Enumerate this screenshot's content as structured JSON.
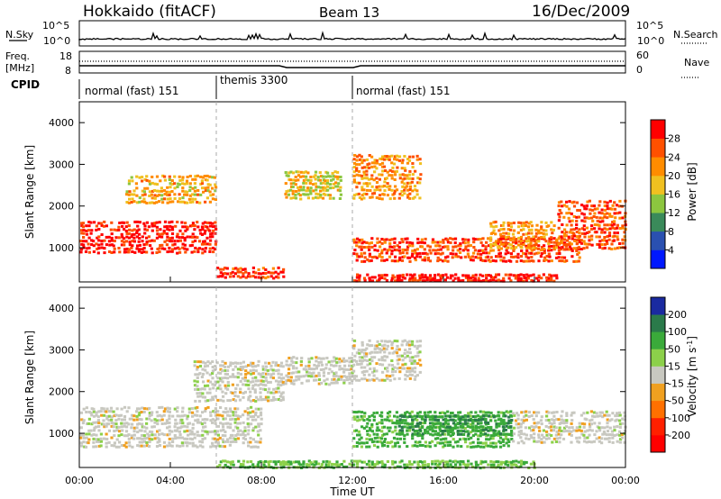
{
  "header": {
    "title": "Hokkaido (fitACF)",
    "beam": "Beam 13",
    "date": "16/Dec/2009"
  },
  "top_panels": {
    "nsky_label": "N.Sky",
    "nsearch_label": "N.Search",
    "nsky_ticks": [
      "10^5",
      "10^0"
    ],
    "nsky_right_ticks": [
      "10^5",
      "10^0"
    ],
    "freq_label_line1": "Freq.",
    "freq_label_line2": "[MHz]",
    "freq_ticks": [
      "18",
      "8"
    ],
    "nave_label": "Nave",
    "nave_ticks": [
      "60",
      "0"
    ],
    "cpid_label": "CPID",
    "cpid_segments": [
      {
        "name": "normal (fast) 151",
        "start_h": 0,
        "end_h": 6
      },
      {
        "name": "themis 3300",
        "start_h": 6,
        "end_h": 12
      },
      {
        "name": "normal (fast) 151",
        "start_h": 12,
        "end_h": 24
      }
    ]
  },
  "axes": {
    "ylabel": "Slant Range [km]",
    "xlabel": "Time UT",
    "y_ticks": [
      "1000",
      "2000",
      "3000",
      "4000"
    ],
    "x_ticks": [
      "00:00",
      "04:00",
      "08:00",
      "12:00",
      "16:00",
      "20:00",
      "00:00"
    ]
  },
  "colorbars": {
    "power": {
      "label": "Power [dB]",
      "ticks": [
        "4",
        "8",
        "12",
        "16",
        "20",
        "24",
        "28"
      ],
      "colors": [
        "#0018ff",
        "#2a50b0",
        "#3a8a5a",
        "#8cc63f",
        "#f0c020",
        "#ff8c00",
        "#ff5000",
        "#ff0000"
      ]
    },
    "velocity": {
      "label_main": "Velocity [m s",
      "label_sup": "-1",
      "label_end": "]",
      "ticks": [
        "200",
        "100",
        "50",
        "15",
        "-15",
        "-50",
        "-100",
        "-200"
      ],
      "colors": [
        "#1a2aa0",
        "#2a7a4a",
        "#3aaa3a",
        "#8cd04a",
        "#c8c8c0",
        "#f0a020",
        "#ff7000",
        "#ff2000",
        "#ff0000"
      ]
    }
  },
  "chart_data": [
    {
      "type": "heatmap",
      "name": "power",
      "xlabel": "Time UT",
      "ylabel": "Slant Range [km]",
      "xlim": [
        0,
        24
      ],
      "ylim": [
        180,
        4500
      ],
      "colorbar_label": "Power [dB]",
      "colorbar_range": [
        0,
        32
      ],
      "regions": [
        {
          "t": [
            0,
            6
          ],
          "r": [
            900,
            1700
          ],
          "value": 30
        },
        {
          "t": [
            2,
            6
          ],
          "r": [
            2100,
            2800
          ],
          "value": 20
        },
        {
          "t": [
            6,
            9
          ],
          "r": [
            300,
            600
          ],
          "value": 28
        },
        {
          "t": [
            9,
            11.5
          ],
          "r": [
            2200,
            2900
          ],
          "value": 18
        },
        {
          "t": [
            12,
            15
          ],
          "r": [
            2200,
            3300
          ],
          "value": 22
        },
        {
          "t": [
            12,
            22
          ],
          "r": [
            700,
            1300
          ],
          "value": 27
        },
        {
          "t": [
            18,
            21
          ],
          "r": [
            1000,
            1700
          ],
          "value": 22
        },
        {
          "t": [
            21,
            24
          ],
          "r": [
            1000,
            2200
          ],
          "value": 26
        },
        {
          "t": [
            12,
            21
          ],
          "r": [
            230,
            420
          ],
          "value": 30
        }
      ]
    },
    {
      "type": "heatmap",
      "name": "velocity",
      "xlabel": "Time UT",
      "ylabel": "Slant Range [km]",
      "xlim": [
        0,
        24
      ],
      "ylim": [
        180,
        4500
      ],
      "colorbar_label": "Velocity [m s-1]",
      "colorbar_range": [
        -200,
        200
      ],
      "regions": [
        {
          "t": [
            0,
            8
          ],
          "r": [
            700,
            1700
          ],
          "value": 0
        },
        {
          "t": [
            5,
            9
          ],
          "r": [
            1800,
            2800
          ],
          "value": 0
        },
        {
          "t": [
            9,
            12
          ],
          "r": [
            2200,
            2900
          ],
          "value": 0
        },
        {
          "t": [
            12,
            15
          ],
          "r": [
            2300,
            3300
          ],
          "value": 0
        },
        {
          "t": [
            12,
            19
          ],
          "r": [
            700,
            1600
          ],
          "value": 60
        },
        {
          "t": [
            14,
            19
          ],
          "r": [
            1000,
            1500
          ],
          "value": 100
        },
        {
          "t": [
            19,
            24
          ],
          "r": [
            800,
            1600
          ],
          "value": 0
        },
        {
          "t": [
            6,
            20
          ],
          "r": [
            200,
            400
          ],
          "value": 50
        }
      ]
    }
  ]
}
